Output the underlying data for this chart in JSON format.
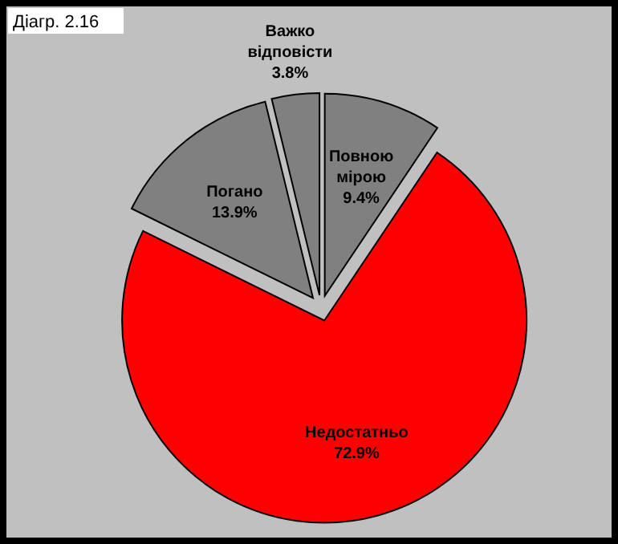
{
  "chart_data": {
    "type": "pie",
    "title": "Діагр. 2.16",
    "categories": [
      "Повною мірою",
      "Недостатньо",
      "Погано",
      "Важко відповісти"
    ],
    "values": [
      9.4,
      72.9,
      13.9,
      3.8
    ],
    "value_labels": [
      "9.4%",
      "72.9%",
      "13.9%",
      "3.8%"
    ],
    "colors": [
      "#808080",
      "#ff0000",
      "#808080",
      "#808080"
    ]
  }
}
